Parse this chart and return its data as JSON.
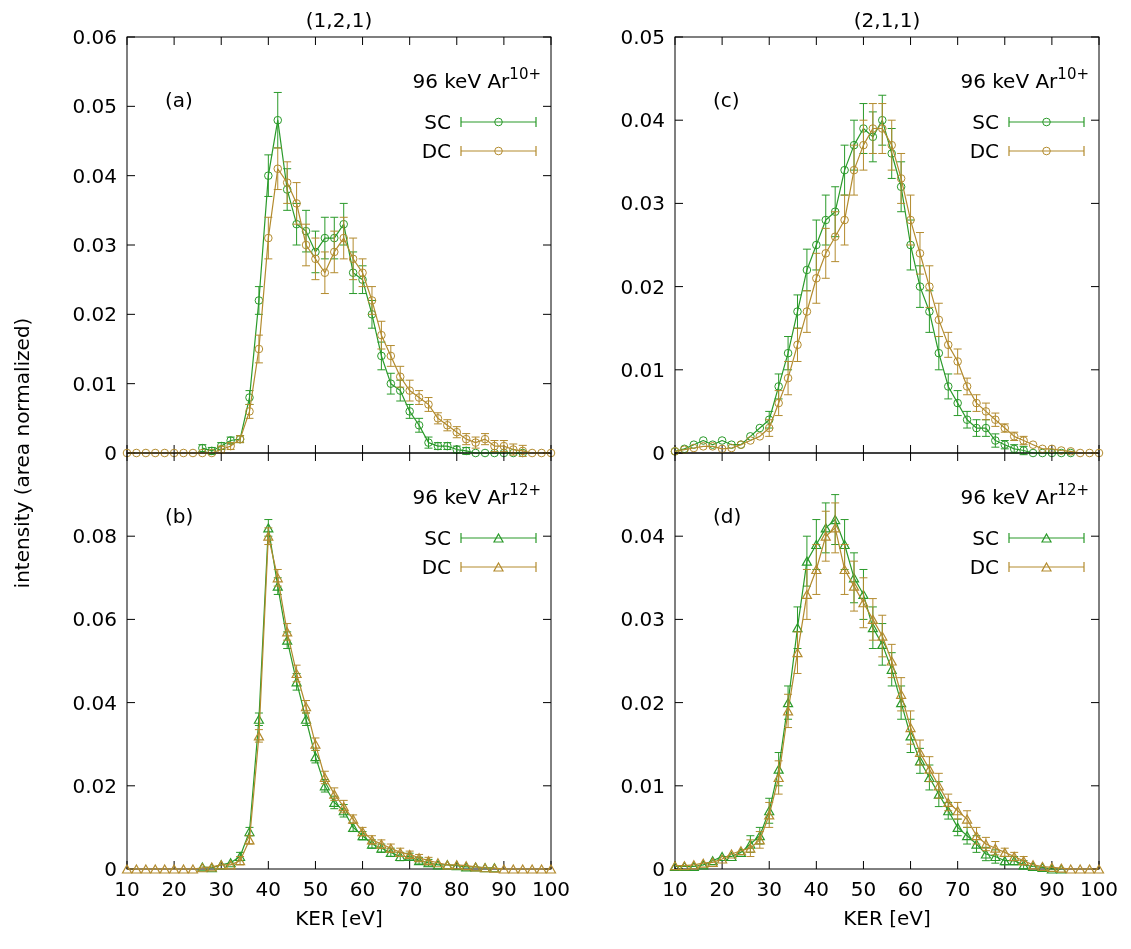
{
  "chart_data": [
    {
      "type": "line",
      "title": "(1,2,1)",
      "ylabel": "intensity (area normalized)",
      "legend_title": "96 keV Ar$^{10+}$",
      "legend": "top right",
      "marker": "circle",
      "tick_labels": "y",
      "annotations": [
        "(a)"
      ],
      "xlim": [
        10,
        100
      ],
      "xticks": [
        10,
        20,
        30,
        40,
        50,
        60,
        70,
        80,
        90,
        100
      ],
      "ylim": [
        0,
        0.06
      ],
      "yticks": [
        0,
        0.01,
        0.02,
        0.03,
        0.04,
        0.05,
        0.06
      ],
      "x": [
        10,
        12,
        14,
        16,
        18,
        20,
        22,
        24,
        26,
        28,
        30,
        32,
        34,
        36,
        38,
        40,
        42,
        44,
        46,
        48,
        50,
        52,
        54,
        56,
        58,
        60,
        62,
        64,
        66,
        68,
        70,
        72,
        74,
        76,
        78,
        80,
        82,
        84,
        86,
        88,
        90,
        92,
        94,
        96,
        98,
        100
      ],
      "series": [
        {
          "name": "SC",
          "color": "#2a9a2a",
          "values": [
            null,
            null,
            null,
            null,
            null,
            null,
            null,
            null,
            0.0007,
            0.0003,
            0.001,
            0.0018,
            0.002,
            0.008,
            0.022,
            0.04,
            0.048,
            0.038,
            0.033,
            0.032,
            0.029,
            0.031,
            0.031,
            0.033,
            0.026,
            0.025,
            0.02,
            0.014,
            0.01,
            0.009,
            0.006,
            0.004,
            0.0015,
            0.001,
            0.001,
            0.0005,
            0.0003,
            0,
            0,
            0,
            0,
            0,
            0,
            null,
            null,
            null
          ],
          "errors": [
            null,
            null,
            null,
            null,
            null,
            null,
            null,
            null,
            0.0005,
            0.0005,
            0.0005,
            0.0005,
            0.0005,
            0.001,
            0.002,
            0.003,
            0.004,
            0.003,
            0.003,
            0.003,
            0.003,
            0.003,
            0.003,
            0.003,
            0.003,
            0.002,
            0.002,
            0.002,
            0.0015,
            0.0015,
            0.001,
            0.001,
            0.0008,
            0.0005,
            0.0005,
            0.0005,
            0.0005,
            null,
            null,
            null,
            null,
            null,
            null,
            null,
            null,
            null
          ]
        },
        {
          "name": "DC",
          "color": "#b38b2e",
          "values": [
            0,
            0,
            0,
            0,
            0,
            0,
            0,
            0,
            0,
            0,
            0.0005,
            0.001,
            0.002,
            0.006,
            0.015,
            0.031,
            0.041,
            0.039,
            0.036,
            0.03,
            0.028,
            0.026,
            0.029,
            0.031,
            0.028,
            0.026,
            0.022,
            0.017,
            0.014,
            0.011,
            0.009,
            0.008,
            0.007,
            0.005,
            0.004,
            0.003,
            0.002,
            0.0015,
            0.002,
            0.001,
            0.001,
            0.0005,
            0.0003,
            0,
            0,
            0
          ],
          "errors": [
            null,
            null,
            null,
            null,
            null,
            null,
            null,
            null,
            null,
            null,
            0.0005,
            0.0005,
            0.0005,
            0.001,
            0.002,
            0.003,
            0.003,
            0.003,
            0.003,
            0.003,
            0.003,
            0.003,
            0.003,
            0.003,
            0.003,
            0.002,
            0.002,
            0.002,
            0.0015,
            0.0015,
            0.0015,
            0.001,
            0.001,
            0.0008,
            0.0008,
            0.0008,
            0.0008,
            0.0008,
            0.0008,
            0.0008,
            0.0008,
            0.0008,
            0.0008,
            null,
            null,
            null
          ]
        }
      ]
    },
    {
      "type": "line",
      "title": "(2,1,1)",
      "legend_title": "96 keV Ar$^{10+}$",
      "legend": "top right",
      "marker": "circle",
      "tick_labels": "y",
      "annotations": [
        "(c)"
      ],
      "xlim": [
        10,
        100
      ],
      "xticks": [
        10,
        20,
        30,
        40,
        50,
        60,
        70,
        80,
        90,
        100
      ],
      "ylim": [
        0,
        0.05
      ],
      "yticks": [
        0,
        0.01,
        0.02,
        0.03,
        0.04,
        0.05
      ],
      "x": [
        10,
        12,
        14,
        16,
        18,
        20,
        22,
        24,
        26,
        28,
        30,
        32,
        34,
        36,
        38,
        40,
        42,
        44,
        46,
        48,
        50,
        52,
        54,
        56,
        58,
        60,
        62,
        64,
        66,
        68,
        70,
        72,
        74,
        76,
        78,
        80,
        82,
        84,
        86,
        88,
        90,
        92,
        94,
        96,
        98,
        100
      ],
      "series": [
        {
          "name": "SC",
          "color": "#2a9a2a",
          "values": [
            0.0002,
            0.0005,
            0.001,
            0.0015,
            0.001,
            0.0015,
            0.001,
            0.001,
            0.002,
            0.003,
            0.004,
            0.008,
            0.012,
            0.017,
            0.022,
            0.025,
            0.028,
            0.029,
            0.034,
            0.037,
            0.039,
            0.038,
            0.04,
            0.036,
            0.032,
            0.025,
            0.02,
            0.017,
            0.012,
            0.008,
            0.006,
            0.004,
            0.003,
            0.003,
            0.0015,
            0.001,
            0.0005,
            0.0003,
            0,
            0,
            0,
            0,
            0,
            null,
            null,
            null
          ],
          "errors": [
            null,
            null,
            null,
            null,
            null,
            null,
            null,
            null,
            null,
            null,
            0.001,
            0.0015,
            0.002,
            0.002,
            0.0025,
            0.003,
            0.003,
            0.003,
            0.003,
            0.003,
            0.003,
            0.003,
            0.003,
            0.003,
            0.003,
            0.003,
            0.0025,
            0.0025,
            0.002,
            0.0015,
            0.0015,
            0.001,
            0.001,
            0.001,
            0.0008,
            0.0005,
            0.0005,
            0.0005,
            null,
            null,
            null,
            null,
            null,
            null,
            null,
            null
          ]
        },
        {
          "name": "DC",
          "color": "#b38b2e",
          "values": [
            0.0002,
            0.0004,
            0.0006,
            0.0008,
            0.0008,
            0.0005,
            0.0006,
            0.001,
            0.0015,
            0.002,
            0.003,
            0.006,
            0.009,
            0.013,
            0.017,
            0.021,
            0.024,
            0.026,
            0.028,
            0.034,
            0.037,
            0.039,
            0.039,
            0.037,
            0.033,
            0.028,
            0.024,
            0.02,
            0.016,
            0.013,
            0.011,
            0.008,
            0.006,
            0.005,
            0.004,
            0.003,
            0.002,
            0.0015,
            0.001,
            0.0005,
            0.0005,
            0.0003,
            0.0002,
            0,
            0,
            0
          ],
          "errors": [
            null,
            null,
            null,
            null,
            null,
            null,
            null,
            null,
            null,
            null,
            0.001,
            0.0015,
            0.002,
            0.002,
            0.0025,
            0.003,
            0.003,
            0.003,
            0.003,
            0.003,
            0.003,
            0.003,
            0.003,
            0.003,
            0.003,
            0.003,
            0.0025,
            0.0025,
            0.002,
            0.0015,
            0.0015,
            0.001,
            0.001,
            0.001,
            0.0008,
            0.0005,
            0.0005,
            0.0005,
            null,
            null,
            null,
            null,
            null,
            null,
            null,
            null
          ]
        }
      ]
    },
    {
      "type": "line",
      "xlabel": "KER [eV]",
      "legend_title": "96 keV Ar$^{12+}$",
      "legend": "top right",
      "marker": "triangle",
      "annotations": [
        "(b)"
      ],
      "xlim": [
        10,
        100
      ],
      "xticks": [
        10,
        20,
        30,
        40,
        50,
        60,
        70,
        80,
        90,
        100
      ],
      "ylim": [
        0,
        0.1
      ],
      "yticks": [
        0,
        0.02,
        0.04,
        0.06,
        0.08
      ],
      "x": [
        10,
        12,
        14,
        16,
        18,
        20,
        22,
        24,
        26,
        28,
        30,
        32,
        34,
        36,
        38,
        40,
        42,
        44,
        46,
        48,
        50,
        52,
        54,
        56,
        58,
        60,
        62,
        64,
        66,
        68,
        70,
        72,
        74,
        76,
        78,
        80,
        82,
        84,
        86,
        88,
        90,
        92,
        94,
        96,
        98,
        100
      ],
      "series": [
        {
          "name": "SC",
          "color": "#2a9a2a",
          "values": [
            null,
            null,
            null,
            null,
            null,
            null,
            null,
            null,
            0.0005,
            0.0003,
            0.001,
            0.0015,
            0.003,
            0.009,
            0.036,
            0.082,
            0.068,
            0.055,
            0.045,
            0.036,
            0.027,
            0.02,
            0.016,
            0.014,
            0.01,
            0.008,
            0.006,
            0.005,
            0.004,
            0.003,
            0.003,
            0.002,
            0.0015,
            0.001,
            0.001,
            0.0008,
            0.0005,
            0.0005,
            0.0003,
            0.0003,
            null,
            null,
            null,
            null,
            null,
            null
          ],
          "errors": [
            null,
            null,
            null,
            null,
            null,
            null,
            null,
            null,
            null,
            null,
            null,
            null,
            0.001,
            0.001,
            0.0015,
            0.002,
            0.002,
            0.002,
            0.002,
            0.0015,
            0.0015,
            0.0015,
            0.0015,
            0.0015,
            0.001,
            0.001,
            0.001,
            0.001,
            0.001,
            0.001,
            0.0008,
            0.0008,
            0.0008,
            null,
            null,
            null,
            null,
            null,
            null,
            null,
            null,
            null,
            null,
            null,
            null,
            null
          ]
        },
        {
          "name": "DC",
          "color": "#b38b2e",
          "values": [
            0,
            0,
            0,
            0,
            0,
            0,
            0,
            0,
            0.0003,
            0.0005,
            0.001,
            0.001,
            0.002,
            0.007,
            0.032,
            0.08,
            0.07,
            0.057,
            0.047,
            0.039,
            0.03,
            0.022,
            0.018,
            0.015,
            0.012,
            0.009,
            0.007,
            0.006,
            0.005,
            0.004,
            0.0035,
            0.0027,
            0.002,
            0.0015,
            0.001,
            0.001,
            0.0008,
            0.0005,
            0.0003,
            0.0002,
            0,
            0,
            0,
            0,
            0,
            0
          ],
          "errors": [
            null,
            null,
            null,
            null,
            null,
            null,
            null,
            null,
            null,
            null,
            null,
            null,
            0.001,
            0.001,
            0.0015,
            0.002,
            0.002,
            0.002,
            0.002,
            0.0015,
            0.0015,
            0.0015,
            0.0015,
            0.0015,
            0.001,
            0.001,
            0.001,
            0.001,
            0.001,
            0.001,
            0.0008,
            0.0008,
            0.0008,
            null,
            null,
            null,
            null,
            null,
            null,
            null,
            null,
            null,
            null,
            null,
            null,
            null
          ]
        }
      ]
    },
    {
      "type": "line",
      "xlabel": "KER [eV]",
      "legend_title": "96 keV Ar$^{12+}$",
      "legend": "top right",
      "marker": "triangle",
      "annotations": [
        "(d)"
      ],
      "xlim": [
        10,
        100
      ],
      "xticks": [
        10,
        20,
        30,
        40,
        50,
        60,
        70,
        80,
        90,
        100
      ],
      "ylim": [
        0,
        0.05
      ],
      "yticks": [
        0,
        0.01,
        0.02,
        0.03,
        0.04
      ],
      "x": [
        10,
        12,
        14,
        16,
        18,
        20,
        22,
        24,
        26,
        28,
        30,
        32,
        34,
        36,
        38,
        40,
        42,
        44,
        46,
        48,
        50,
        52,
        54,
        56,
        58,
        60,
        62,
        64,
        66,
        68,
        70,
        72,
        74,
        76,
        78,
        80,
        82,
        84,
        86,
        88,
        90,
        92,
        94,
        96,
        98,
        100
      ],
      "series": [
        {
          "name": "SC",
          "color": "#2a9a2a",
          "values": [
            0.0003,
            0.0003,
            0.0003,
            0.0005,
            0.001,
            0.0015,
            0.0015,
            0.002,
            0.003,
            0.004,
            0.007,
            0.012,
            0.02,
            0.029,
            0.037,
            0.039,
            0.041,
            0.042,
            0.039,
            0.035,
            0.033,
            0.029,
            0.027,
            0.024,
            0.02,
            0.016,
            0.013,
            0.011,
            0.009,
            0.007,
            0.005,
            0.004,
            0.003,
            0.0018,
            0.0015,
            0.001,
            0.001,
            0.0005,
            0.0003,
            0.0002,
            0,
            0,
            null,
            null,
            null,
            null
          ],
          "errors": [
            null,
            null,
            null,
            null,
            null,
            null,
            null,
            null,
            0.001,
            0.001,
            0.0015,
            0.002,
            0.002,
            0.0025,
            0.003,
            0.003,
            0.003,
            0.003,
            0.003,
            0.003,
            0.003,
            0.0025,
            0.0025,
            0.002,
            0.002,
            0.002,
            0.0015,
            0.0015,
            0.0015,
            0.001,
            0.001,
            0.001,
            0.001,
            0.0008,
            0.0008,
            0.0005,
            0.0005,
            0.0005,
            null,
            null,
            null,
            null,
            null,
            null,
            null,
            null
          ]
        },
        {
          "name": "DC",
          "color": "#b38b2e",
          "values": [
            0.0004,
            0.0004,
            0.0005,
            0.0007,
            0.0008,
            0.0012,
            0.0018,
            0.0022,
            0.0025,
            0.0035,
            0.0065,
            0.011,
            0.019,
            0.026,
            0.033,
            0.036,
            0.04,
            0.041,
            0.036,
            0.034,
            0.032,
            0.03,
            0.028,
            0.025,
            0.021,
            0.017,
            0.014,
            0.012,
            0.01,
            0.008,
            0.007,
            0.006,
            0.004,
            0.003,
            0.0025,
            0.002,
            0.0015,
            0.001,
            0.0005,
            0.0003,
            0.0002,
            0.0001,
            0,
            0,
            0,
            0
          ],
          "errors": [
            null,
            null,
            null,
            null,
            null,
            null,
            null,
            null,
            0.001,
            0.001,
            0.0015,
            0.002,
            0.002,
            0.0025,
            0.003,
            0.003,
            0.003,
            0.003,
            0.003,
            0.003,
            0.003,
            0.0025,
            0.0025,
            0.002,
            0.002,
            0.002,
            0.0015,
            0.0015,
            0.0015,
            0.001,
            0.001,
            0.001,
            0.001,
            0.0008,
            0.0008,
            0.0005,
            0.0005,
            0.0005,
            null,
            null,
            null,
            null,
            null,
            null,
            null,
            null
          ]
        }
      ]
    }
  ]
}
